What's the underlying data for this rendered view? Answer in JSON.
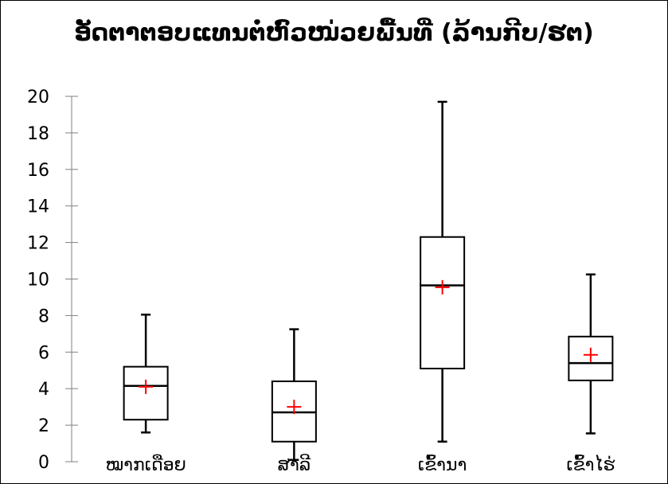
{
  "chart_data": {
    "type": "box",
    "title": "ອັດຕາຕອບແທນຕໍ່ຫົວໜ່ວຍພື້ນທີ່ (ລ້ານກີບ/ຮຕ)",
    "xlabel": "",
    "ylabel": "",
    "ylim": [
      0,
      20
    ],
    "yticks": [
      0,
      2,
      4,
      6,
      8,
      10,
      12,
      14,
      16,
      18,
      20
    ],
    "ytick_labels": [
      "0",
      "2",
      "4",
      "6",
      "8",
      "10",
      "12",
      "14",
      "16",
      "18",
      "20"
    ],
    "categories": [
      "ໝາກເດືອຍ",
      "ສາລີ",
      "ເຂົ້ານາ",
      "ເຂົ້າໄຮ່"
    ],
    "boxes": [
      {
        "category": "ໝາກເດືອຍ",
        "min": 1.6,
        "q1": 2.3,
        "median": 4.15,
        "q3": 5.2,
        "max": 8.05,
        "mean": 4.1
      },
      {
        "category": "ສາລີ",
        "min": 0.1,
        "q1": 1.1,
        "median": 2.7,
        "q3": 4.4,
        "max": 7.25,
        "mean": 3.0
      },
      {
        "category": "ເຂົ້ານາ",
        "min": 1.1,
        "q1": 5.1,
        "median": 9.65,
        "q3": 12.3,
        "max": 19.7,
        "mean": 9.55
      },
      {
        "category": "ເຂົ້າໄຮ່",
        "min": 1.55,
        "q1": 4.45,
        "median": 5.4,
        "q3": 6.85,
        "max": 10.25,
        "mean": 5.85
      }
    ],
    "grid": false,
    "legend": false,
    "colors": {
      "box": "#000000",
      "mean_marker": "#ff0000",
      "axis": "#808080",
      "text": "#000000"
    }
  }
}
